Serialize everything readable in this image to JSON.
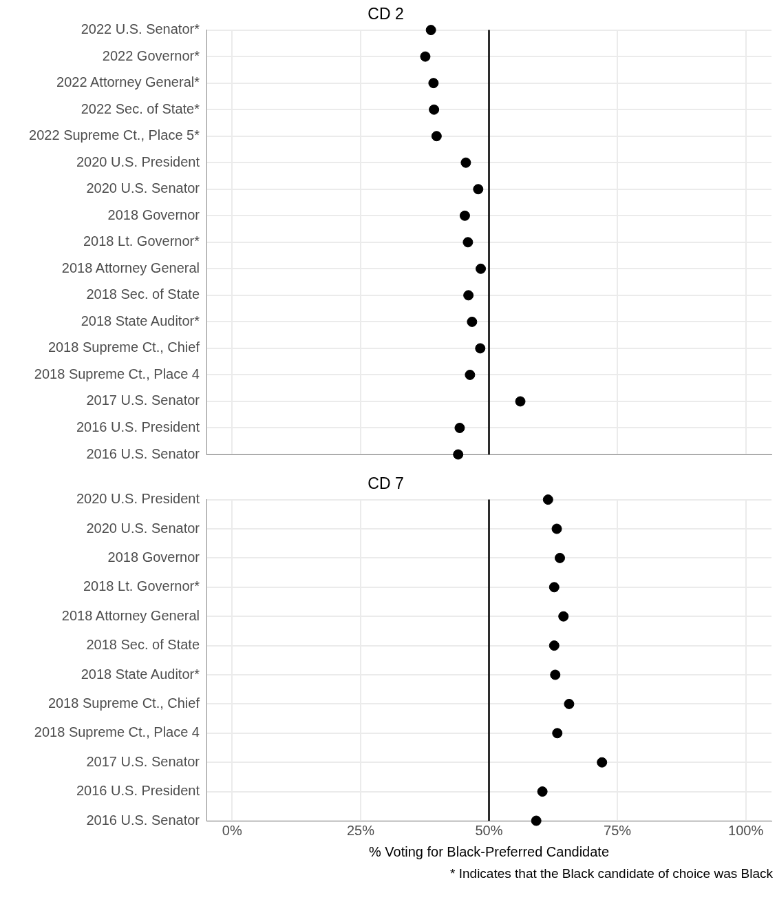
{
  "chart_data": [
    {
      "type": "scatter",
      "title": "CD 2",
      "orientation": "horizontal",
      "categories": [
        "2022 U.S. Senator*",
        "2022 Governor*",
        "2022 Attorney General*",
        "2022 Sec. of State*",
        "2022 Supreme Ct., Place 5*",
        "2020 U.S. President",
        "2020 U.S. Senator",
        "2018 Governor",
        "2018 Lt. Governor*",
        "2018 Attorney General",
        "2018 Sec. of State",
        "2018 State Auditor*",
        "2018 Supreme Ct., Chief",
        "2018 Supreme Ct., Place 4",
        "2017 U.S. Senator",
        "2016 U.S. President",
        "2016 U.S. Senator"
      ],
      "values": [
        38.7,
        37.6,
        39.2,
        39.3,
        39.8,
        45.5,
        47.9,
        45.3,
        45.9,
        48.4,
        46.0,
        46.7,
        48.3,
        46.3,
        56.1,
        44.3,
        44.0
      ],
      "color": "#000000",
      "marker": "circle",
      "xlim": [
        -5,
        105
      ],
      "xticks": [
        {
          "value": 0,
          "label": null
        },
        {
          "value": 25,
          "label": null
        },
        {
          "value": 50,
          "label": null
        },
        {
          "value": 75,
          "label": null
        },
        {
          "value": 100,
          "label": null
        }
      ],
      "tick_labels": "y",
      "grid": true,
      "legend": false,
      "ref_lines": [
        {
          "axis": "x",
          "value": 50,
          "color": "#000000"
        }
      ]
    },
    {
      "type": "scatter",
      "title": "CD 7",
      "orientation": "horizontal",
      "categories": [
        "2020 U.S. President",
        "2020 U.S. Senator",
        "2018 Governor",
        "2018 Lt. Governor*",
        "2018 Attorney General",
        "2018 Sec. of State",
        "2018 State Auditor*",
        "2018 Supreme Ct., Chief",
        "2018 Supreme Ct., Place 4",
        "2017 U.S. Senator",
        "2016 U.S. President",
        "2016 U.S. Senator"
      ],
      "values": [
        61.5,
        63.2,
        63.8,
        62.7,
        64.5,
        62.7,
        62.9,
        65.6,
        63.3,
        72.0,
        60.4,
        59.2
      ],
      "color": "#000000",
      "marker": "circle",
      "xlim": [
        -5,
        105
      ],
      "xticks": [
        {
          "value": 0,
          "label": "0%"
        },
        {
          "value": 25,
          "label": "25%"
        },
        {
          "value": 50,
          "label": "50%"
        },
        {
          "value": 75,
          "label": "75%"
        },
        {
          "value": 100,
          "label": "100%"
        }
      ],
      "xlabel": "% Voting for Black-Preferred Candidate",
      "grid": true,
      "legend": false,
      "ref_lines": [
        {
          "axis": "x",
          "value": 50,
          "color": "#000000"
        }
      ],
      "annotations": [
        "* Indicates that the Black candidate of choice was Black"
      ]
    }
  ]
}
